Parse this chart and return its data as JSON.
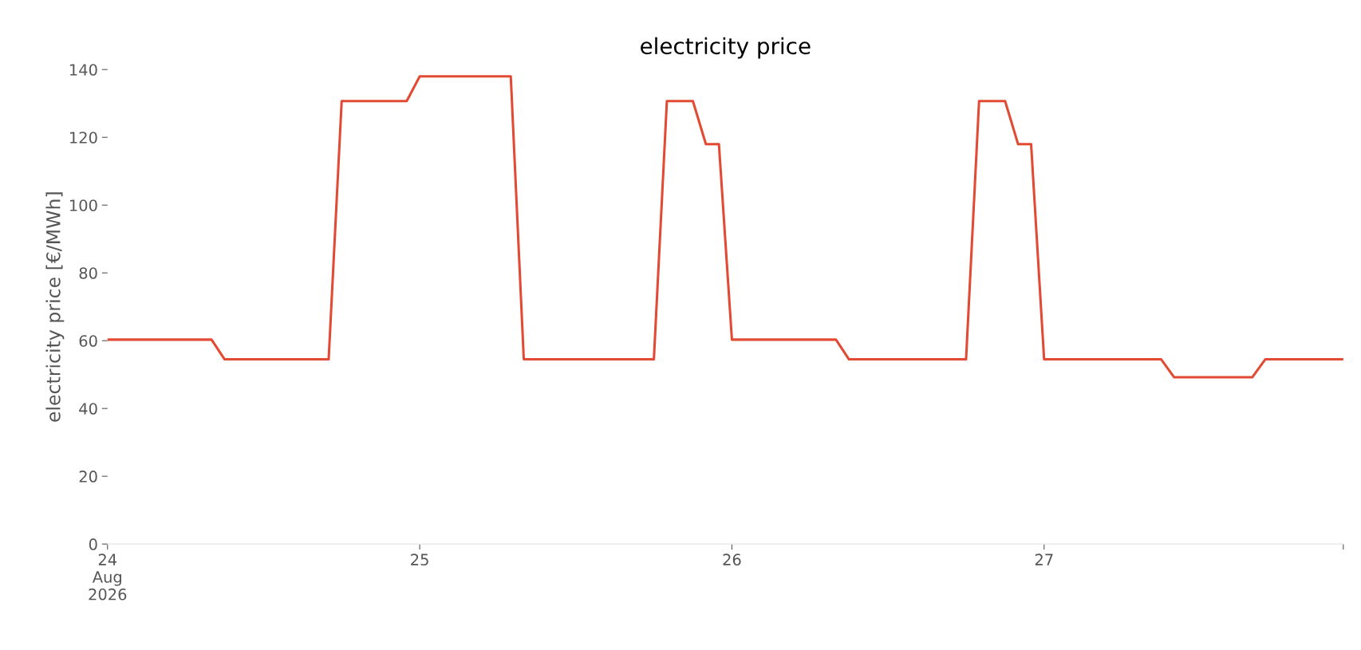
{
  "chart_data": {
    "type": "line",
    "title": "electricity price",
    "ylabel": "electricity price [€/MWh]",
    "x": [
      "2026-08-24T00:00",
      "2026-08-24T08:00",
      "2026-08-24T09:00",
      "2026-08-24T17:00",
      "2026-08-24T18:00",
      "2026-08-24T23:00",
      "2026-08-25T00:00",
      "2026-08-25T07:00",
      "2026-08-25T08:00",
      "2026-08-25T18:00",
      "2026-08-25T19:00",
      "2026-08-25T21:00",
      "2026-08-25T22:00",
      "2026-08-25T23:00",
      "2026-08-26T00:00",
      "2026-08-26T08:00",
      "2026-08-26T09:00",
      "2026-08-26T18:00",
      "2026-08-26T19:00",
      "2026-08-26T21:00",
      "2026-08-26T22:00",
      "2026-08-26T23:00",
      "2026-08-27T00:00",
      "2026-08-27T09:00",
      "2026-08-27T10:00",
      "2026-08-27T16:00",
      "2026-08-27T17:00",
      "2026-08-27T23:00"
    ],
    "series": [
      {
        "color": "#e24a33",
        "values": [
          60.3,
          60.3,
          54.5,
          54.5,
          130.7,
          130.7,
          138,
          138,
          54.5,
          54.5,
          130.7,
          130.7,
          118,
          118,
          60.3,
          60.3,
          54.5,
          54.5,
          130.7,
          130.7,
          118,
          118,
          54.5,
          54.5,
          49.2,
          49.2,
          54.5,
          54.5
        ]
      }
    ],
    "xlim": [
      "2026-08-24T00:00",
      "2026-08-27T23:00"
    ],
    "xticks": [
      {
        "value": "2026-08-24T00:00",
        "label": "24\nAug\n2026"
      },
      {
        "value": "2026-08-25T00:00",
        "label": "25"
      },
      {
        "value": "2026-08-26T00:00",
        "label": "26"
      },
      {
        "value": "2026-08-27T00:00",
        "label": "27"
      },
      {
        "value": "2026-08-27T23:00",
        "label": null
      }
    ],
    "ylim": [
      0,
      140
    ],
    "yticks": [
      0,
      20,
      40,
      60,
      80,
      100,
      120,
      140
    ],
    "grid": false,
    "line_style": "solid",
    "marker": "none"
  }
}
